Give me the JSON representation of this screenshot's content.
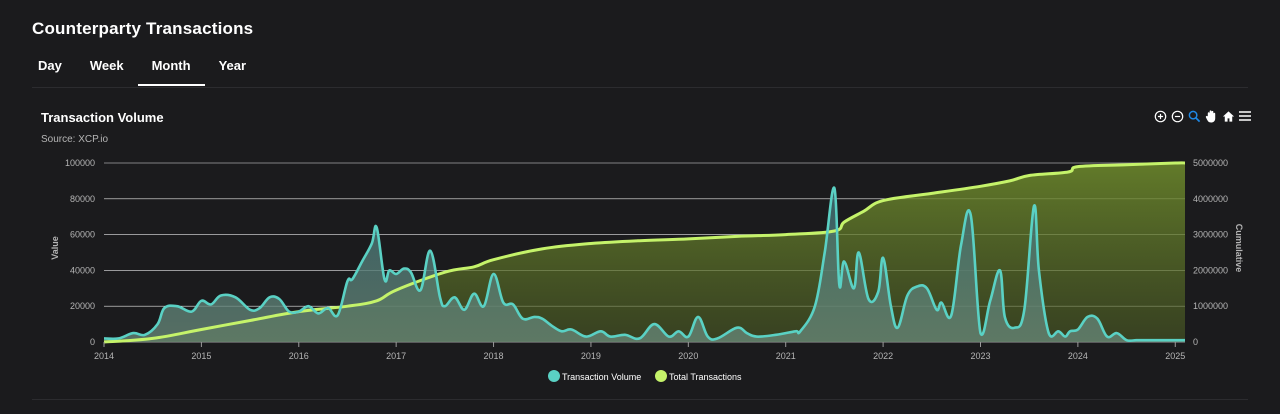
{
  "page": {
    "title": "Counterparty Transactions"
  },
  "tabs": [
    {
      "label": "Day",
      "active": false
    },
    {
      "label": "Week",
      "active": false
    },
    {
      "label": "Month",
      "active": true
    },
    {
      "label": "Year",
      "active": false
    }
  ],
  "toolbar": {
    "icons": [
      "zoom-in-icon",
      "zoom-out-icon",
      "selection-zoom-icon",
      "pan-hand-icon",
      "reset-home-icon",
      "menu-icon"
    ],
    "active_icon": "selection-zoom-icon",
    "active_color": "#1e88e5"
  },
  "chart_data": {
    "type": "area",
    "title": "Transaction Volume",
    "subtitle": "Source: XCP.io",
    "ylabel": "Value",
    "y2label": "Cumulative",
    "ylim": [
      0,
      100000
    ],
    "y2lim": [
      0,
      5000000
    ],
    "yticks": [
      "0",
      "20000",
      "40000",
      "60000",
      "80000",
      "100000"
    ],
    "y2ticks": [
      "0",
      "1000000",
      "2000000",
      "3000000",
      "4000000",
      "5000000"
    ],
    "xlim": [
      2014.0,
      2025.1
    ],
    "xticks": [
      "2014",
      "2015",
      "2016",
      "2017",
      "2018",
      "2019",
      "2020",
      "2021",
      "2022",
      "2023",
      "2024",
      "2025"
    ],
    "grid": true,
    "legend": "bottom-center",
    "series": [
      {
        "name": "Transaction Volume",
        "axis": "left",
        "color": "#5ad1c4",
        "x": [
          2014.0,
          2014.15,
          2014.3,
          2014.42,
          2014.55,
          2014.62,
          2014.75,
          2014.9,
          2015.0,
          2015.1,
          2015.2,
          2015.35,
          2015.5,
          2015.6,
          2015.7,
          2015.8,
          2015.9,
          2016.0,
          2016.1,
          2016.2,
          2016.3,
          2016.4,
          2016.5,
          2016.55,
          2016.65,
          2016.75,
          2016.8,
          2016.88,
          2016.93,
          2017.0,
          2017.08,
          2017.15,
          2017.25,
          2017.35,
          2017.45,
          2017.5,
          2017.6,
          2017.7,
          2017.8,
          2017.9,
          2018.0,
          2018.1,
          2018.2,
          2018.3,
          2018.42,
          2018.5,
          2018.6,
          2018.7,
          2018.8,
          2018.95,
          2019.1,
          2019.2,
          2019.35,
          2019.5,
          2019.65,
          2019.8,
          2019.9,
          2020.0,
          2020.1,
          2020.2,
          2020.3,
          2020.5,
          2020.6,
          2020.7,
          2020.9,
          2021.1,
          2021.15,
          2021.3,
          2021.4,
          2021.5,
          2021.55,
          2021.6,
          2021.7,
          2021.75,
          2021.85,
          2021.95,
          2022.0,
          2022.08,
          2022.15,
          2022.25,
          2022.35,
          2022.45,
          2022.55,
          2022.6,
          2022.7,
          2022.8,
          2022.9,
          2023.0,
          2023.1,
          2023.2,
          2023.25,
          2023.35,
          2023.45,
          2023.55,
          2023.6,
          2023.7,
          2023.8,
          2023.87,
          2023.92,
          2024.0,
          2024.1,
          2024.2,
          2024.3,
          2024.4,
          2024.5,
          2024.6,
          2024.7,
          2024.8,
          2024.9,
          2025.0,
          2025.1
        ],
        "values": [
          2000,
          2000,
          5000,
          4000,
          10000,
          19000,
          20000,
          17000,
          23000,
          21000,
          26000,
          25000,
          18000,
          19000,
          25000,
          24000,
          17000,
          17000,
          20000,
          16000,
          19000,
          15000,
          34000,
          35000,
          45000,
          55000,
          64000,
          35000,
          40000,
          38000,
          41000,
          39000,
          29000,
          51000,
          25000,
          20000,
          25000,
          18000,
          27000,
          20000,
          38000,
          22000,
          21000,
          13000,
          14000,
          13000,
          9000,
          6000,
          7000,
          3000,
          6000,
          3000,
          4000,
          2000,
          10000,
          3000,
          6000,
          3000,
          14000,
          3000,
          2000,
          8000,
          5000,
          3000,
          4000,
          6000,
          6000,
          20000,
          50000,
          86000,
          32000,
          45000,
          30000,
          50000,
          24000,
          28000,
          47000,
          20000,
          8000,
          26000,
          31000,
          30000,
          18000,
          22000,
          15000,
          54000,
          71000,
          5000,
          23000,
          40000,
          14000,
          8000,
          18000,
          76000,
          40000,
          5000,
          6000,
          3000,
          6000,
          7000,
          14000,
          13000,
          3000,
          5000,
          1000,
          1000,
          1000,
          1000,
          1000,
          1000,
          1000
        ]
      },
      {
        "name": "Total Transactions",
        "axis": "right",
        "color": "#c5f36a",
        "x": [
          2014.0,
          2014.5,
          2015.0,
          2015.5,
          2016.0,
          2016.5,
          2016.8,
          2017.0,
          2017.5,
          2017.8,
          2018.0,
          2018.5,
          2019.0,
          2019.5,
          2020.0,
          2020.5,
          2021.0,
          2021.5,
          2021.6,
          2021.8,
          2022.0,
          2022.5,
          2023.0,
          2023.3,
          2023.5,
          2023.9,
          2024.0,
          2024.5,
          2025.0,
          2025.1
        ],
        "values": [
          0,
          100000,
          350000,
          600000,
          850000,
          1000000,
          1150000,
          1450000,
          1950000,
          2100000,
          2300000,
          2600000,
          2750000,
          2830000,
          2880000,
          2950000,
          3000000,
          3100000,
          3350000,
          3650000,
          3950000,
          4150000,
          4350000,
          4500000,
          4650000,
          4750000,
          4900000,
          4950000,
          5000000,
          5000000
        ]
      }
    ]
  }
}
